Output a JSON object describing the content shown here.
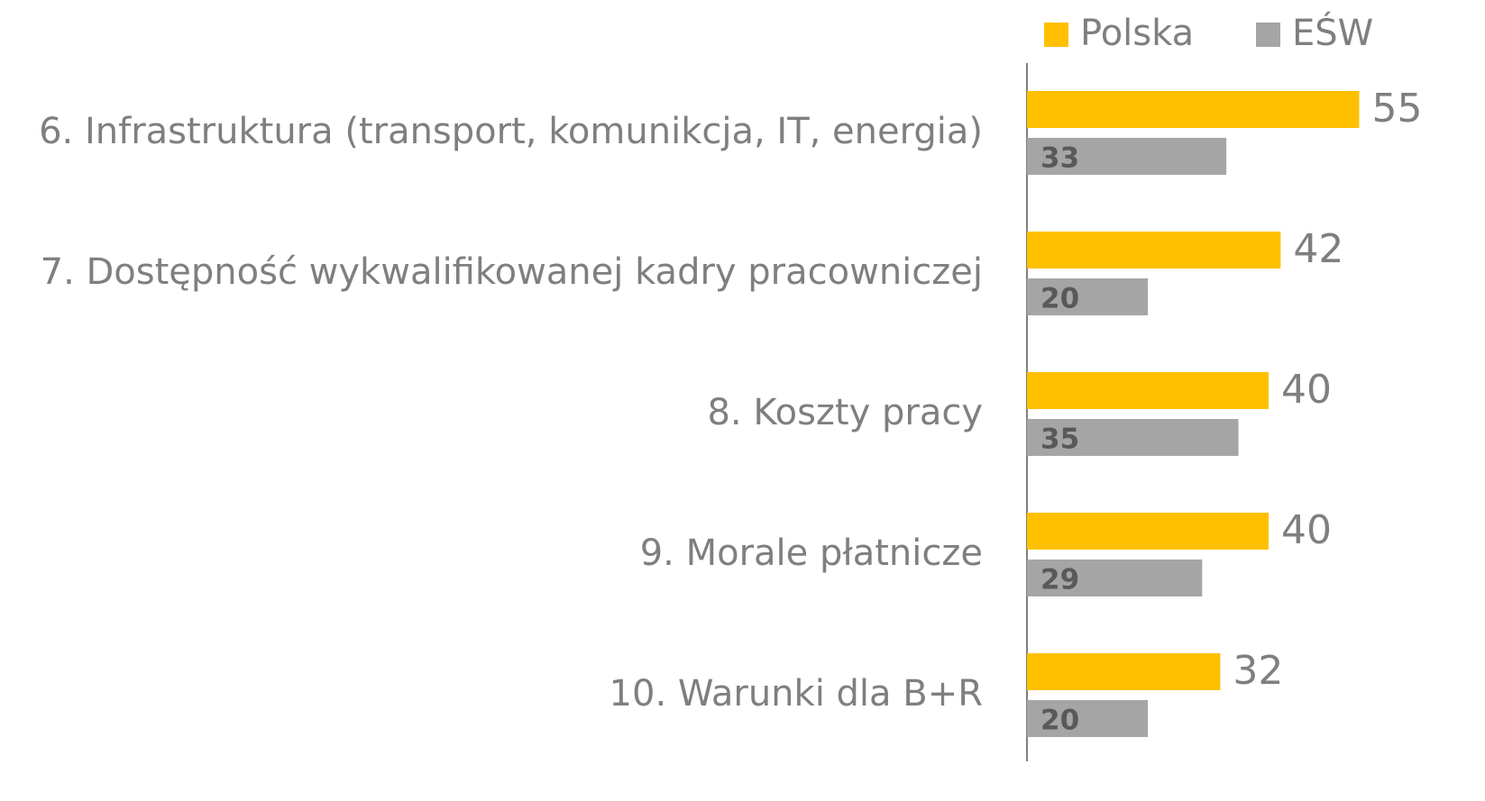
{
  "chart_data": {
    "type": "bar",
    "orientation": "horizontal",
    "categories": [
      "6. Infrastruktura (transport, komunikcja, IT, energia)",
      "7. Dostępność wykwalifikowanej kadry pracowniczej",
      "8. Koszty pracy",
      "9. Morale płatnicze",
      "10. Warunki dla B+R"
    ],
    "series": [
      {
        "name": "Polska",
        "color": "#ffc000",
        "values": [
          55,
          42,
          40,
          40,
          32
        ]
      },
      {
        "name": "EŚW",
        "color": "#a5a5a5",
        "values": [
          33,
          20,
          35,
          29,
          20
        ]
      }
    ],
    "legend": "top-right"
  }
}
